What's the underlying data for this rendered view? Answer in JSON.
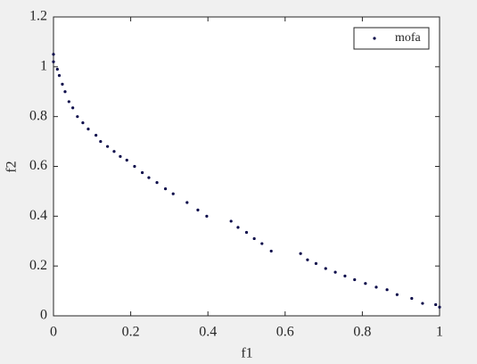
{
  "chart_data": {
    "type": "scatter",
    "xlabel": "f1",
    "ylabel": "f2",
    "xlim": [
      0,
      1
    ],
    "ylim": [
      0,
      1.2
    ],
    "xticks": [
      0,
      0.2,
      0.4,
      0.6,
      0.8,
      1
    ],
    "yticks": [
      0,
      0.2,
      0.4,
      0.6,
      0.8,
      1,
      1.2
    ],
    "legend": "northeast",
    "series": [
      {
        "name": "mofa",
        "color": "#0a0a4a",
        "x": [
          0,
          0,
          0.01,
          0.015,
          0.023,
          0.03,
          0.04,
          0.05,
          0.062,
          0.076,
          0.09,
          0.11,
          0.122,
          0.14,
          0.157,
          0.173,
          0.19,
          0.21,
          0.23,
          0.247,
          0.268,
          0.29,
          0.31,
          0.346,
          0.374,
          0.397,
          0.46,
          0.478,
          0.5,
          0.52,
          0.54,
          0.564,
          0.64,
          0.658,
          0.68,
          0.705,
          0.73,
          0.755,
          0.78,
          0.808,
          0.836,
          0.864,
          0.89,
          0.928,
          0.956,
          0.99,
          1.0
        ],
        "values": [
          1.05,
          1.02,
          0.99,
          0.965,
          0.93,
          0.9,
          0.86,
          0.835,
          0.8,
          0.775,
          0.75,
          0.725,
          0.7,
          0.68,
          0.66,
          0.64,
          0.625,
          0.6,
          0.575,
          0.555,
          0.535,
          0.51,
          0.49,
          0.455,
          0.425,
          0.4,
          0.38,
          0.355,
          0.335,
          0.31,
          0.29,
          0.26,
          0.25,
          0.225,
          0.21,
          0.19,
          0.175,
          0.16,
          0.145,
          0.13,
          0.115,
          0.105,
          0.085,
          0.07,
          0.05,
          0.045,
          0.035
        ]
      }
    ]
  }
}
